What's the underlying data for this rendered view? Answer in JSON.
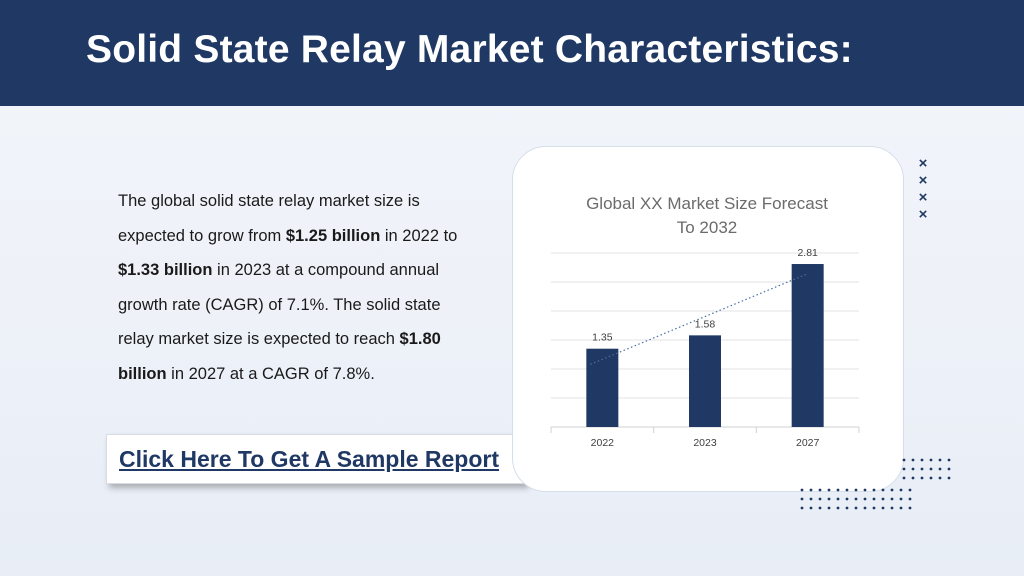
{
  "header": {
    "title": "Solid State Relay Market Characteristics:"
  },
  "body": {
    "p1": "The global solid state relay market size is expected to grow from ",
    "b1": "$1.25 billion",
    "p2": " in 2022 to ",
    "b2": "$1.33 billion",
    "p3": " in 2023 at a compound annual growth rate (CAGR) of 7.1%. The solid state relay market size is expected to reach ",
    "b3": "$1.80 billion",
    "p4": " in 2027 at a CAGR of 7.8%."
  },
  "cta": {
    "label": "Click Here To Get A Sample Report"
  },
  "decor": {
    "x_mark": "×"
  },
  "colors": {
    "brand": "#1f3864",
    "bar": "#1f3864",
    "grid": "#e3e3e3"
  },
  "chart_data": {
    "type": "bar",
    "title": "Global XX Market Size Forecast To 2032",
    "title_lines": [
      "Global XX Market Size Forecast",
      "To 2032"
    ],
    "categories": [
      "2022",
      "2023",
      "2027"
    ],
    "values": [
      1.35,
      1.58,
      2.81
    ],
    "data_labels": [
      "1.35",
      "1.58",
      "2.81"
    ],
    "ylim": [
      0,
      3
    ],
    "grid": true,
    "trendline": "linear dotted",
    "legend": "none"
  }
}
